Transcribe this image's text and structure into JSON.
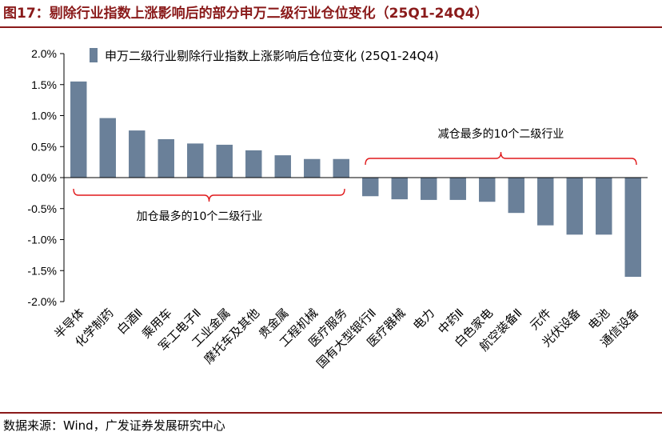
{
  "figure": {
    "title": "图17：剔除行业指数上涨影响后的部分申万二级行业仓位变化（25Q1-24Q4）",
    "source": "数据来源：Wind，广发证券发展研究中心"
  },
  "colors": {
    "bar": "#6a8099",
    "title": "#8a1a1a",
    "brace": "#e0191b",
    "axis": "#000000"
  },
  "chart_data": {
    "type": "bar",
    "title": "",
    "xlabel": "",
    "ylabel": "",
    "ylim": [
      -2.0,
      2.0
    ],
    "yticks": [
      "2.0%",
      "1.5%",
      "1.0%",
      "0.5%",
      "0.0%",
      "-0.5%",
      "-1.0%",
      "-1.5%",
      "-2.0%"
    ],
    "ytick_values": [
      2.0,
      1.5,
      1.0,
      0.5,
      0.0,
      -0.5,
      -1.0,
      -1.5,
      -2.0
    ],
    "grid": false,
    "legend_position": "top",
    "series": [
      {
        "name": "申万二级行业剔除行业指数上涨影响后仓位变化 (25Q1-24Q4)",
        "values": [
          1.55,
          0.96,
          0.76,
          0.62,
          0.55,
          0.53,
          0.44,
          0.36,
          0.3,
          0.3,
          -0.3,
          -0.35,
          -0.36,
          -0.36,
          -0.39,
          -0.57,
          -0.77,
          -0.92,
          -0.92,
          -1.6
        ]
      }
    ],
    "categories": [
      "半导体",
      "化学制药",
      "白酒Ⅱ",
      "乘用车",
      "军工电子Ⅱ",
      "工业金属",
      "摩托车及其他",
      "贵金属",
      "工程机械",
      "医疗服务",
      "国有大型银行Ⅱ",
      "医疗器械",
      "电力",
      "中药Ⅱ",
      "白色家电",
      "航空装备Ⅱ",
      "元件",
      "光伏设备",
      "电池",
      "通信设备"
    ],
    "annotations": [
      {
        "text": "加仓最多的10个二级行业",
        "from": 0,
        "to": 9,
        "side": "below"
      },
      {
        "text": "减仓最多的10个二级行业",
        "from": 10,
        "to": 19,
        "side": "above"
      }
    ]
  }
}
